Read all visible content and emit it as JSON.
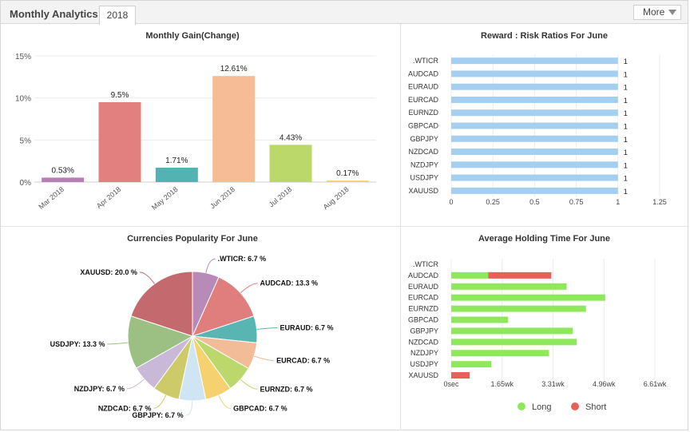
{
  "header": {
    "title": "Monthly Analytics",
    "tab": "2018",
    "more_label": "More"
  },
  "panels": {
    "gain_title": "Monthly Gain(Change)",
    "risk_title": "Reward : Risk Ratios For June",
    "popularity_title": "Currencies Popularity For June",
    "holding_title": "Average Holding Time For June"
  },
  "colors": {
    "risk_bar": "#a5cff0",
    "long": "#8fe85c",
    "short": "#e8605a"
  },
  "chart_data": [
    {
      "type": "bar",
      "title": "Monthly Gain(Change)",
      "categories": [
        "Mar 2018",
        "Apr 2018",
        "May 2018",
        "Jun 2018",
        "Jul 2018",
        "Aug 2018"
      ],
      "values": [
        0.53,
        9.5,
        1.71,
        12.61,
        4.43,
        0.17
      ],
      "value_labels": [
        "0.53%",
        "9.5%",
        "1.71%",
        "12.61%",
        "4.43%",
        "0.17%"
      ],
      "colors": [
        "#b77fb4",
        "#e2807f",
        "#52b3b2",
        "#f6bc95",
        "#bbd96b",
        "#f6cf62"
      ],
      "yticks": [
        "0%",
        "5%",
        "10%",
        "15%"
      ],
      "ylim": [
        0,
        15
      ]
    },
    {
      "type": "bar",
      "orientation": "horizontal",
      "title": "Reward : Risk Ratios For June",
      "categories": [
        ".WTICR",
        "AUDCAD",
        "EURAUD",
        "EURCAD",
        "EURNZD",
        "GBPCAD",
        "GBPJPY",
        "NZDCAD",
        "NZDJPY",
        "USDJPY",
        "XAUUSD"
      ],
      "values": [
        1,
        1,
        1,
        1,
        1,
        1,
        1,
        1,
        1,
        1,
        1
      ],
      "value_labels": [
        "1",
        "1",
        "1",
        "1",
        "1",
        "1",
        "1",
        "1",
        "1",
        "1",
        "1"
      ],
      "xticks": [
        "0",
        "0.25",
        "0.5",
        "0.75",
        "1",
        "1.25"
      ],
      "xlim": [
        0,
        1.25
      ]
    },
    {
      "type": "pie",
      "title": "Currencies Popularity For June",
      "labels": [
        ".WTICR: 6.7 %",
        "AUDCAD: 13.3 %",
        "EURAUD: 6.7 %",
        "EURCAD: 6.7 %",
        "EURNZD: 6.7 %",
        "GBPCAD: 6.7 %",
        "GBPJPY: 6.7 %",
        "NZDCAD: 6.7 %",
        "NZDJPY: 6.7 %",
        "USDJPY: 13.3 %",
        "XAUUSD: 20.0 %"
      ],
      "values": [
        6.7,
        13.3,
        6.7,
        6.7,
        6.7,
        6.7,
        6.7,
        6.7,
        6.7,
        13.3,
        20.0
      ],
      "colors": [
        "#b78ab8",
        "#e07d7d",
        "#58b5b2",
        "#f2bc98",
        "#bcd86d",
        "#f5d26f",
        "#cfe5f4",
        "#cdca6a",
        "#c9b8d8",
        "#9cc084",
        "#c46a6e"
      ]
    },
    {
      "type": "bar",
      "orientation": "horizontal",
      "stacked": true,
      "title": "Average Holding Time For June",
      "categories": [
        ".WTICR",
        "AUDCAD",
        "EURAUD",
        "EURCAD",
        "EURNZD",
        "GBPCAD",
        "GBPJPY",
        "NZDCAD",
        "NZDJPY",
        "USDJPY",
        "XAUUSD"
      ],
      "series": [
        {
          "name": "Long",
          "values": [
            0,
            0.48,
            1.5,
            2.0,
            1.75,
            0.74,
            1.58,
            1.63,
            1.27,
            0.52,
            0
          ]
        },
        {
          "name": "Short",
          "values": [
            0,
            0.82,
            0,
            0,
            0,
            0,
            0,
            0,
            0,
            0,
            0.24
          ]
        }
      ],
      "xticks": [
        "0sec",
        "1.65wk",
        "3.31wk",
        "4.96wk",
        "6.61wk"
      ],
      "xlim": [
        0,
        2.645
      ]
    }
  ]
}
